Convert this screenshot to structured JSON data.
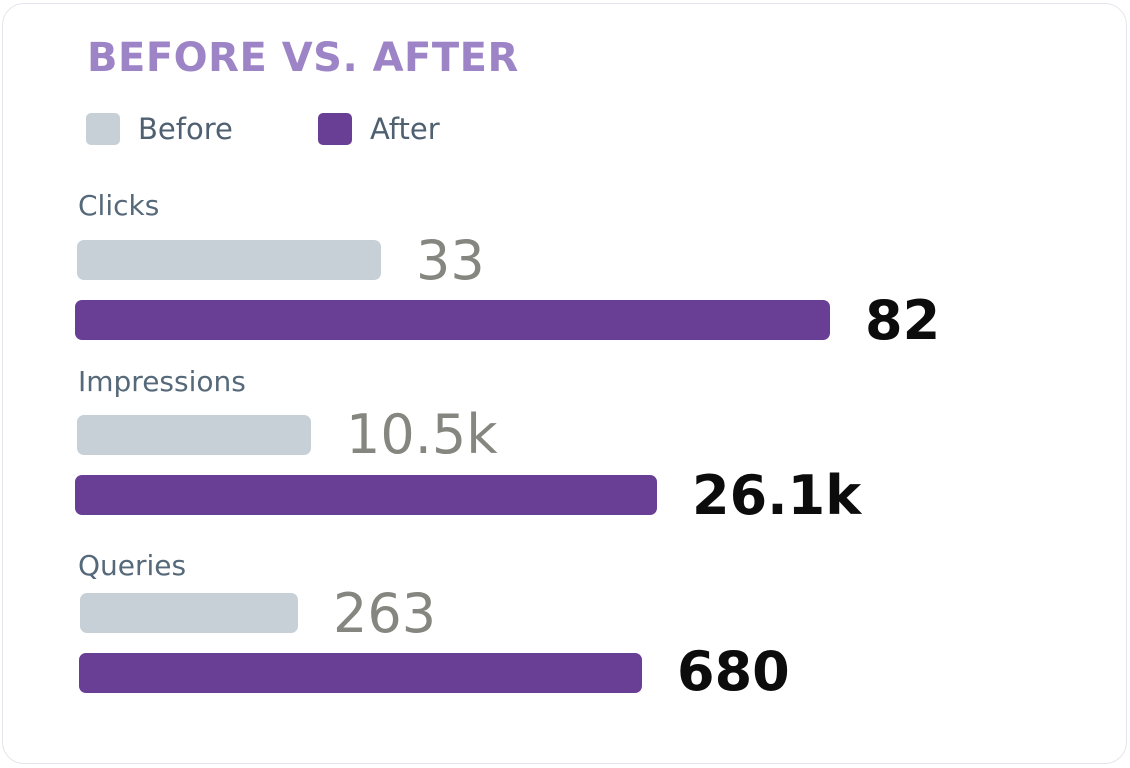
{
  "chart_data": {
    "type": "bar",
    "orientation": "horizontal",
    "title": "BEFORE VS. AFTER",
    "categories": [
      "Clicks",
      "Impressions",
      "Queries"
    ],
    "series": [
      {
        "name": "Before",
        "values": [
          33,
          10500,
          263
        ],
        "labels": [
          "33",
          "10.5k",
          "263"
        ],
        "color": "#c6d0d6"
      },
      {
        "name": "After",
        "values": [
          82,
          26100,
          680
        ],
        "labels": [
          "82",
          "26.1k",
          "680"
        ],
        "color": "#693e95"
      }
    ],
    "legend": "top-left",
    "grid": false,
    "title_color": "#9d84c6"
  }
}
